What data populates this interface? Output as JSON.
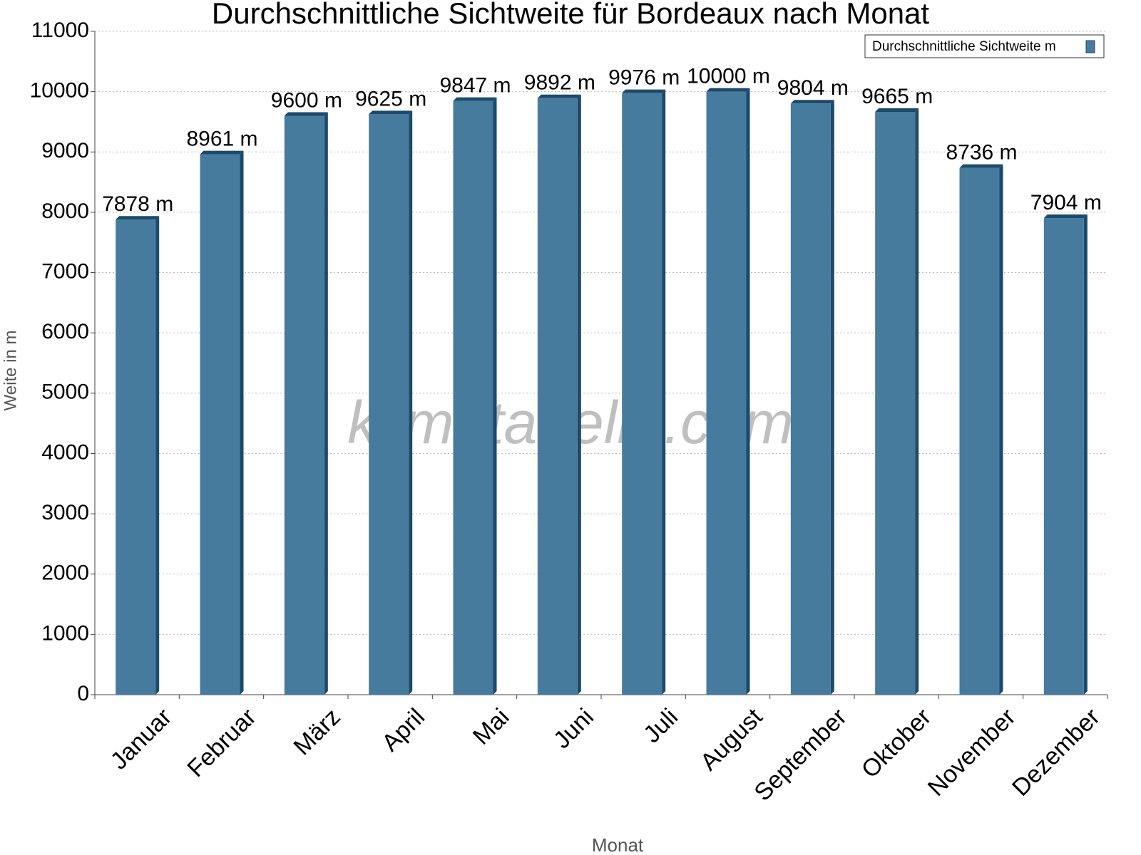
{
  "chart_data": {
    "type": "bar",
    "title": "Durchschnittliche Sichtweite für Bordeaux nach Monat",
    "x_label": "Monat",
    "y_label": "Weite in m",
    "watermark": "klimatabelle.com",
    "categories": [
      "Januar",
      "Februar",
      "März",
      "April",
      "Mai",
      "Juni",
      "Juli",
      "August",
      "September",
      "Oktober",
      "November",
      "Dezember"
    ],
    "series": [
      {
        "name": "Durchschnittliche Sichtweite m",
        "color": "#477b9e",
        "values": [
          7878,
          8961,
          9600,
          9625,
          9847,
          9892,
          9976,
          10000,
          9804,
          9665,
          8736,
          7904
        ],
        "value_labels": [
          "7878 m",
          "8961 m",
          "9600 m",
          "9625 m",
          "9847 m",
          "9892 m",
          "9976 m",
          "10000 m",
          "9804 m",
          "9665 m",
          "8736 m",
          "7904 m"
        ]
      }
    ],
    "ylim": [
      0,
      11000
    ],
    "yticks": [
      0,
      1000,
      2000,
      3000,
      4000,
      5000,
      6000,
      7000,
      8000,
      9000,
      10000,
      11000
    ],
    "grid": true,
    "legend": "top-right"
  }
}
